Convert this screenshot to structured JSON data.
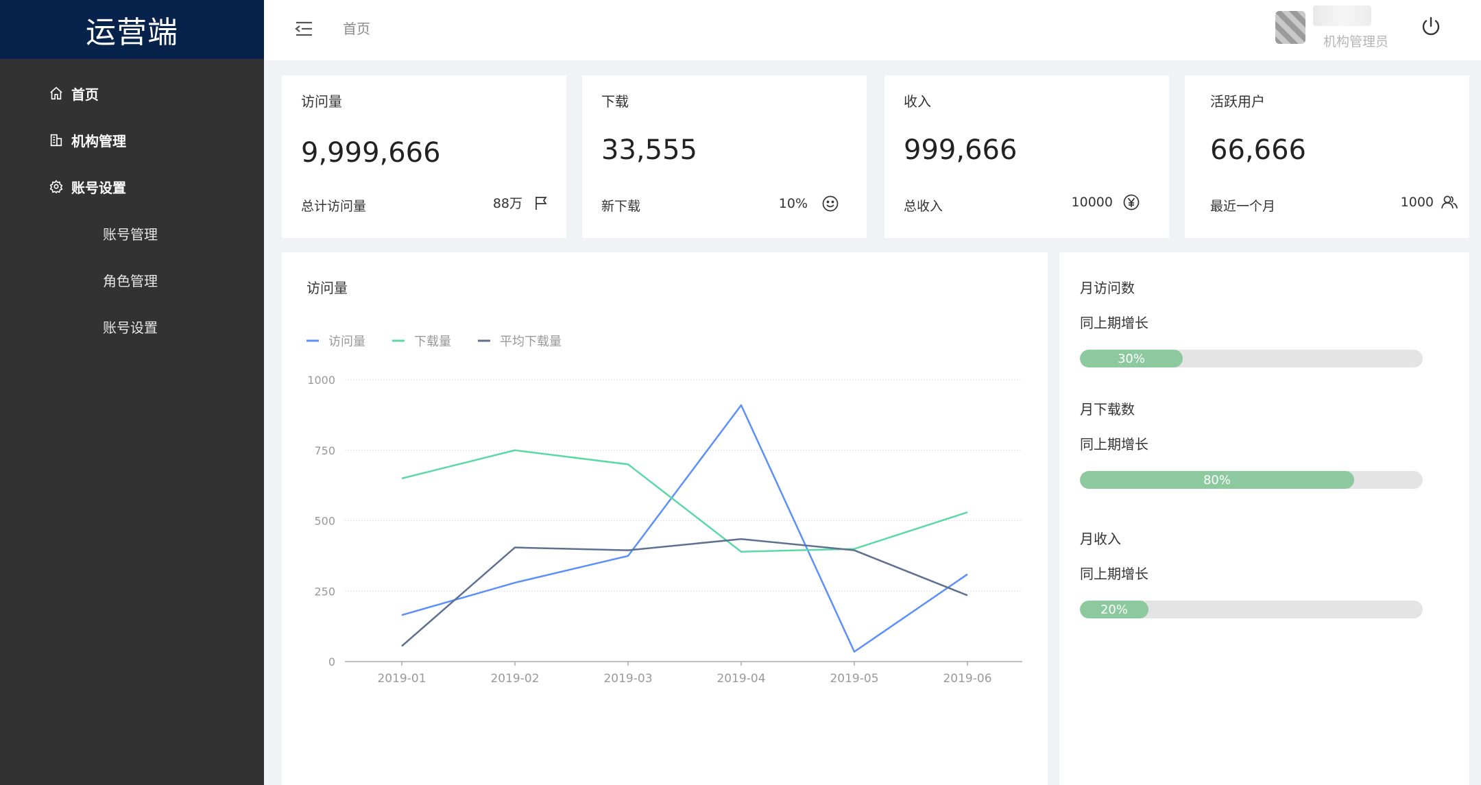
{
  "app": {
    "logo_text": "运营端"
  },
  "sidebar": {
    "items": [
      {
        "label": "首页",
        "icon": "home-icon"
      },
      {
        "label": "机构管理",
        "icon": "building-icon"
      },
      {
        "label": "账号设置",
        "icon": "gear-icon"
      }
    ],
    "sub_items": [
      {
        "label": "账号管理"
      },
      {
        "label": "角色管理"
      },
      {
        "label": "账号设置"
      }
    ]
  },
  "header": {
    "breadcrumb": "首页",
    "user_role": "机构管理员",
    "icons": [
      "menu-fold-icon",
      "power-icon"
    ]
  },
  "stats": [
    {
      "title": "访问量",
      "value": "9,999,666",
      "foot_label": "总计访问量",
      "foot_value": "88万",
      "icon": "flag-icon"
    },
    {
      "title": "下载",
      "value": "33,555",
      "foot_label": "新下载",
      "foot_value": "10%",
      "icon": "smile-icon"
    },
    {
      "title": "收入",
      "value": "999,666",
      "foot_label": "总收入",
      "foot_value": "10000",
      "icon": "yen-icon"
    },
    {
      "title": "活跃用户",
      "value": "66,666",
      "foot_label": "最近一个月",
      "foot_value": "1000",
      "icon": "users-icon"
    }
  ],
  "chart_panel": {
    "title": "访问量"
  },
  "chart_data": {
    "type": "line",
    "categories": [
      "2019-01",
      "2019-02",
      "2019-03",
      "2019-04",
      "2019-05",
      "2019-06"
    ],
    "series": [
      {
        "name": "访问量",
        "color": "#5b8ff9",
        "values": [
          165,
          280,
          375,
          910,
          35,
          310
        ]
      },
      {
        "name": "下载量",
        "color": "#5ad8a6",
        "values": [
          650,
          750,
          700,
          390,
          400,
          530
        ]
      },
      {
        "name": "平均下载量",
        "color": "#5d7092",
        "values": [
          55,
          405,
          395,
          435,
          395,
          235
        ]
      }
    ],
    "y_ticks": [
      0,
      250,
      500,
      750,
      1000
    ],
    "ylim": [
      0,
      1000
    ],
    "grid": "horizontal-dashed",
    "legend": "top-left"
  },
  "progress": [
    {
      "title": "月访问数",
      "subtitle": "同上期增长",
      "percent": 30,
      "label": "30%"
    },
    {
      "title": "月下载数",
      "subtitle": "同上期增长",
      "percent": 80,
      "label": "80%"
    },
    {
      "title": "月收入",
      "subtitle": "同上期增长",
      "percent": 20,
      "label": "20%"
    }
  ],
  "colors": {
    "sidebar_bg": "#323232",
    "logo_bg": "#08234b",
    "progress_fill": "#8cc99e",
    "progress_track": "#e4e4e4"
  }
}
